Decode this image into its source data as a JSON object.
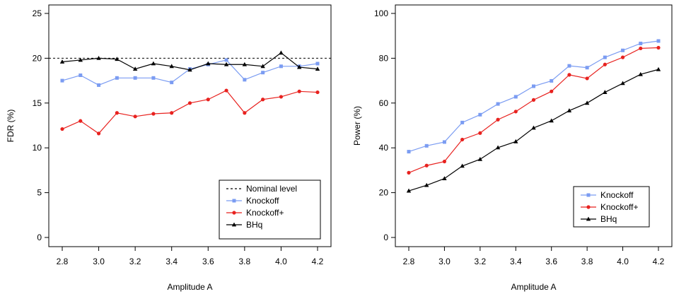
{
  "chart_data": [
    {
      "type": "line",
      "xlabel": "Amplitude A",
      "ylabel": "FDR (%)",
      "xlim": [
        2.8,
        4.2
      ],
      "ylim": [
        0,
        25
      ],
      "xticks": [
        "2.8",
        "3.0",
        "3.2",
        "3.4",
        "3.6",
        "3.8",
        "4.0",
        "4.2"
      ],
      "yticks": [
        "0",
        "5",
        "10",
        "15",
        "20",
        "25"
      ],
      "x": [
        2.8,
        2.9,
        3.0,
        3.1,
        3.2,
        3.3,
        3.4,
        3.5,
        3.6,
        3.7,
        3.8,
        3.9,
        4.0,
        4.1,
        4.2
      ],
      "grid": false,
      "legend_position": "bottom-right",
      "reference_line": {
        "name": "Nominal level",
        "value": 20,
        "color": "#000000",
        "style": "dashed"
      },
      "series": [
        {
          "name": "Knockoff",
          "color": "#7b9cf2",
          "marker": "square",
          "values": [
            17.5,
            18.1,
            17.0,
            17.8,
            17.8,
            17.8,
            17.3,
            18.8,
            19.3,
            19.8,
            17.6,
            18.4,
            19.1,
            19.1,
            19.4
          ]
        },
        {
          "name": "Knockoff+",
          "color": "#e8221f",
          "marker": "circle",
          "values": [
            12.1,
            13.0,
            11.6,
            13.9,
            13.5,
            13.8,
            13.9,
            15.0,
            15.4,
            16.4,
            13.9,
            15.4,
            15.7,
            16.3,
            16.2
          ]
        },
        {
          "name": "BHq",
          "color": "#000000",
          "marker": "triangle",
          "values": [
            19.6,
            19.8,
            20.0,
            19.9,
            18.8,
            19.4,
            19.1,
            18.7,
            19.4,
            19.3,
            19.3,
            19.1,
            20.6,
            19.0,
            18.8
          ]
        }
      ]
    },
    {
      "type": "line",
      "xlabel": "Amplitude A",
      "ylabel": "Power (%)",
      "xlim": [
        2.8,
        4.2
      ],
      "ylim": [
        0,
        100
      ],
      "xticks": [
        "2.8",
        "3.0",
        "3.2",
        "3.4",
        "3.6",
        "3.8",
        "4.0",
        "4.2"
      ],
      "yticks": [
        "0",
        "20",
        "40",
        "60",
        "80",
        "100"
      ],
      "x": [
        2.8,
        2.9,
        3.0,
        3.1,
        3.2,
        3.3,
        3.4,
        3.5,
        3.6,
        3.7,
        3.8,
        3.9,
        4.0,
        4.1,
        4.2
      ],
      "grid": false,
      "legend_position": "bottom-right",
      "series": [
        {
          "name": "Knockoff",
          "color": "#7b9cf2",
          "marker": "square",
          "values": [
            38.3,
            40.9,
            42.6,
            51.3,
            54.8,
            59.6,
            62.8,
            67.5,
            69.9,
            76.6,
            75.8,
            80.4,
            83.5,
            86.6,
            87.7
          ]
        },
        {
          "name": "Knockoff+",
          "color": "#e8221f",
          "marker": "circle",
          "values": [
            28.9,
            32.1,
            33.9,
            43.7,
            46.6,
            52.6,
            56.2,
            61.4,
            65.2,
            72.6,
            71.0,
            77.2,
            80.4,
            84.4,
            84.7
          ]
        },
        {
          "name": "BHq",
          "color": "#000000",
          "marker": "triangle",
          "values": [
            20.8,
            23.3,
            26.3,
            31.9,
            34.9,
            40.1,
            42.8,
            48.9,
            52.1,
            56.6,
            60.0,
            64.8,
            68.8,
            72.8,
            75.0
          ]
        }
      ]
    }
  ]
}
